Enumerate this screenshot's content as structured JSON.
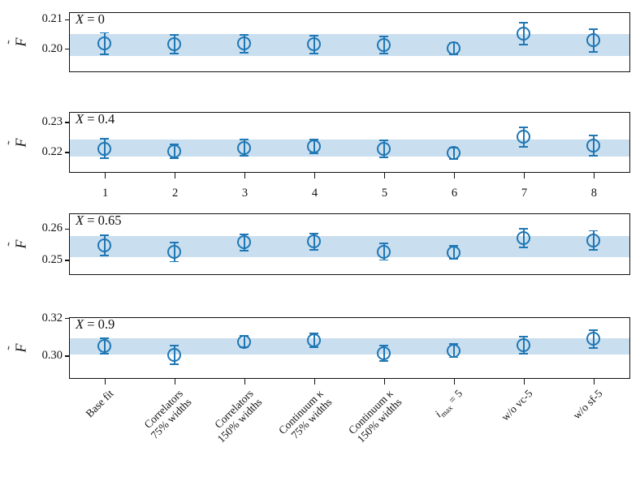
{
  "chart_data": {
    "type": "scatter",
    "marker_style": "open-circle-with-errorbars",
    "grid": false,
    "legend": null,
    "colors": {
      "marker": "#1f77b4",
      "band": "#c9deef",
      "axis": "#111111"
    },
    "x": [
      1,
      2,
      3,
      4,
      5,
      6,
      7,
      8
    ],
    "xtick_labels": [
      "1",
      "2",
      "3",
      "4",
      "5",
      "6",
      "7",
      "8"
    ],
    "xlim": [
      0.5,
      8.5
    ],
    "ylabel": {
      "letter": "F",
      "accent": "˜"
    },
    "categories": [
      {
        "lines": [
          "Base fit"
        ]
      },
      {
        "lines": [
          "Correlators",
          "75% widths"
        ]
      },
      {
        "lines": [
          "Correlators",
          "150% widths"
        ]
      },
      {
        "lines": [
          "Continuum κ",
          "75% widths"
        ]
      },
      {
        "lines": [
          "Continuum κ",
          "150% widths"
        ]
      },
      {
        "base": "i",
        "sub": "max",
        "rest": " = 5"
      },
      {
        "lines": [
          "w/o vc-5"
        ]
      },
      {
        "lines": [
          "w/o sf-5"
        ]
      }
    ],
    "panels": [
      {
        "label_var": "X",
        "label_rest": " = 0",
        "ylim": [
          0.1927,
          0.2121
        ],
        "yticks": [
          {
            "v": 0.2,
            "label": "0.20"
          },
          {
            "v": 0.21,
            "label": "0.21"
          }
        ],
        "band": [
          0.1976,
          0.205
        ],
        "values": [
          0.2018,
          0.2016,
          0.2017,
          0.2015,
          0.2013,
          0.2001,
          0.2051,
          0.2028
        ],
        "errors": [
          0.0036,
          0.0032,
          0.003,
          0.003,
          0.0028,
          0.002,
          0.0036,
          0.0038
        ]
      },
      {
        "label_var": "X",
        "label_rest": " = 0.4",
        "ylim": [
          0.2136,
          0.2331
        ],
        "yticks": [
          {
            "v": 0.22,
            "label": "0.22"
          },
          {
            "v": 0.23,
            "label": "0.23"
          }
        ],
        "band": [
          0.2185,
          0.2241
        ],
        "values": [
          0.2211,
          0.2201,
          0.2214,
          0.2218,
          0.221,
          0.2196,
          0.225,
          0.2221
        ],
        "errors": [
          0.0033,
          0.0023,
          0.0028,
          0.0024,
          0.0028,
          0.0019,
          0.0032,
          0.0035
        ]
      },
      {
        "label_var": "X",
        "label_rest": " = 0.65",
        "ylim": [
          0.2458,
          0.2646
        ],
        "yticks": [
          {
            "v": 0.25,
            "label": "0.25"
          },
          {
            "v": 0.26,
            "label": "0.26"
          }
        ],
        "band": [
          0.2509,
          0.2576
        ],
        "values": [
          0.2547,
          0.2525,
          0.2556,
          0.2559,
          0.2526,
          0.2524,
          0.2569,
          0.2563
        ],
        "errors": [
          0.0032,
          0.003,
          0.0026,
          0.0026,
          0.0026,
          0.0021,
          0.003,
          0.003
        ]
      },
      {
        "label_var": "X",
        "label_rest": " = 0.9",
        "ylim": [
          0.2886,
          0.32
        ],
        "yticks": [
          {
            "v": 0.3,
            "label": "0.30"
          },
          {
            "v": 0.32,
            "label": "0.32"
          }
        ],
        "band": [
          0.3006,
          0.3094
        ],
        "values": [
          0.3051,
          0.3003,
          0.3074,
          0.3081,
          0.3012,
          0.3026,
          0.3054,
          0.3088
        ],
        "errors": [
          0.0042,
          0.005,
          0.003,
          0.0036,
          0.004,
          0.0035,
          0.0045,
          0.0046
        ]
      }
    ]
  }
}
